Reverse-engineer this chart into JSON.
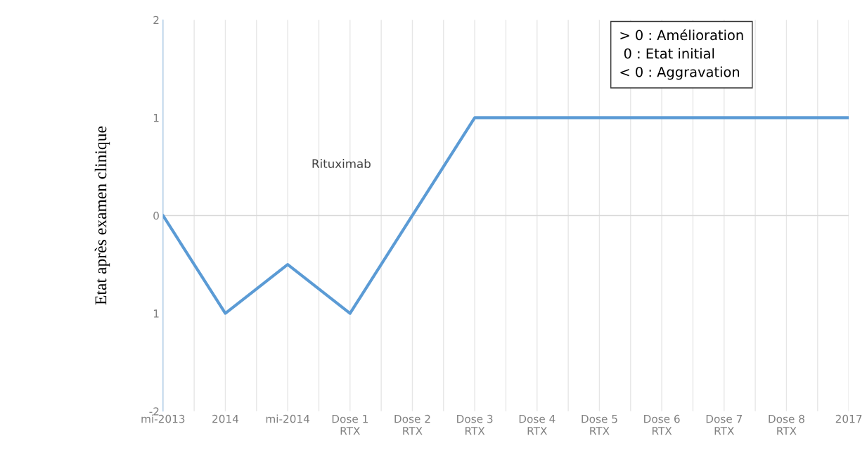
{
  "chart_data": {
    "type": "line",
    "categories": [
      "mi-2013",
      "2014",
      "mi-2014",
      "Dose 1\nRTX",
      "Dose 2\nRTX",
      "Dose 3\nRTX",
      "Dose 4\nRTX",
      "Dose 5\nRTX",
      "Dose 6\nRTX",
      "Dose 7\nRTX",
      "Dose 8\nRTX",
      "2017"
    ],
    "series": [
      {
        "color": "#5b9bd5",
        "values": [
          0,
          -1,
          -0.5,
          -1,
          0,
          1,
          1,
          1,
          1,
          1,
          1,
          1
        ]
      }
    ],
    "ylabel": "Etat après examen clinique",
    "ylim": [
      -2,
      2
    ],
    "yticks": [
      -2,
      {
        "value": -1,
        "label": "1"
      },
      0,
      1,
      2
    ],
    "grid": "x",
    "marker": "none",
    "line_style": "solid",
    "ref_lines": [
      {
        "axis": "y",
        "value": 0,
        "color": "#d9d9d9"
      }
    ],
    "annotations": [
      "> 0 : Amélioration\n 0 : Etat initial\n< 0 : Aggravation",
      "Rituximab"
    ]
  }
}
